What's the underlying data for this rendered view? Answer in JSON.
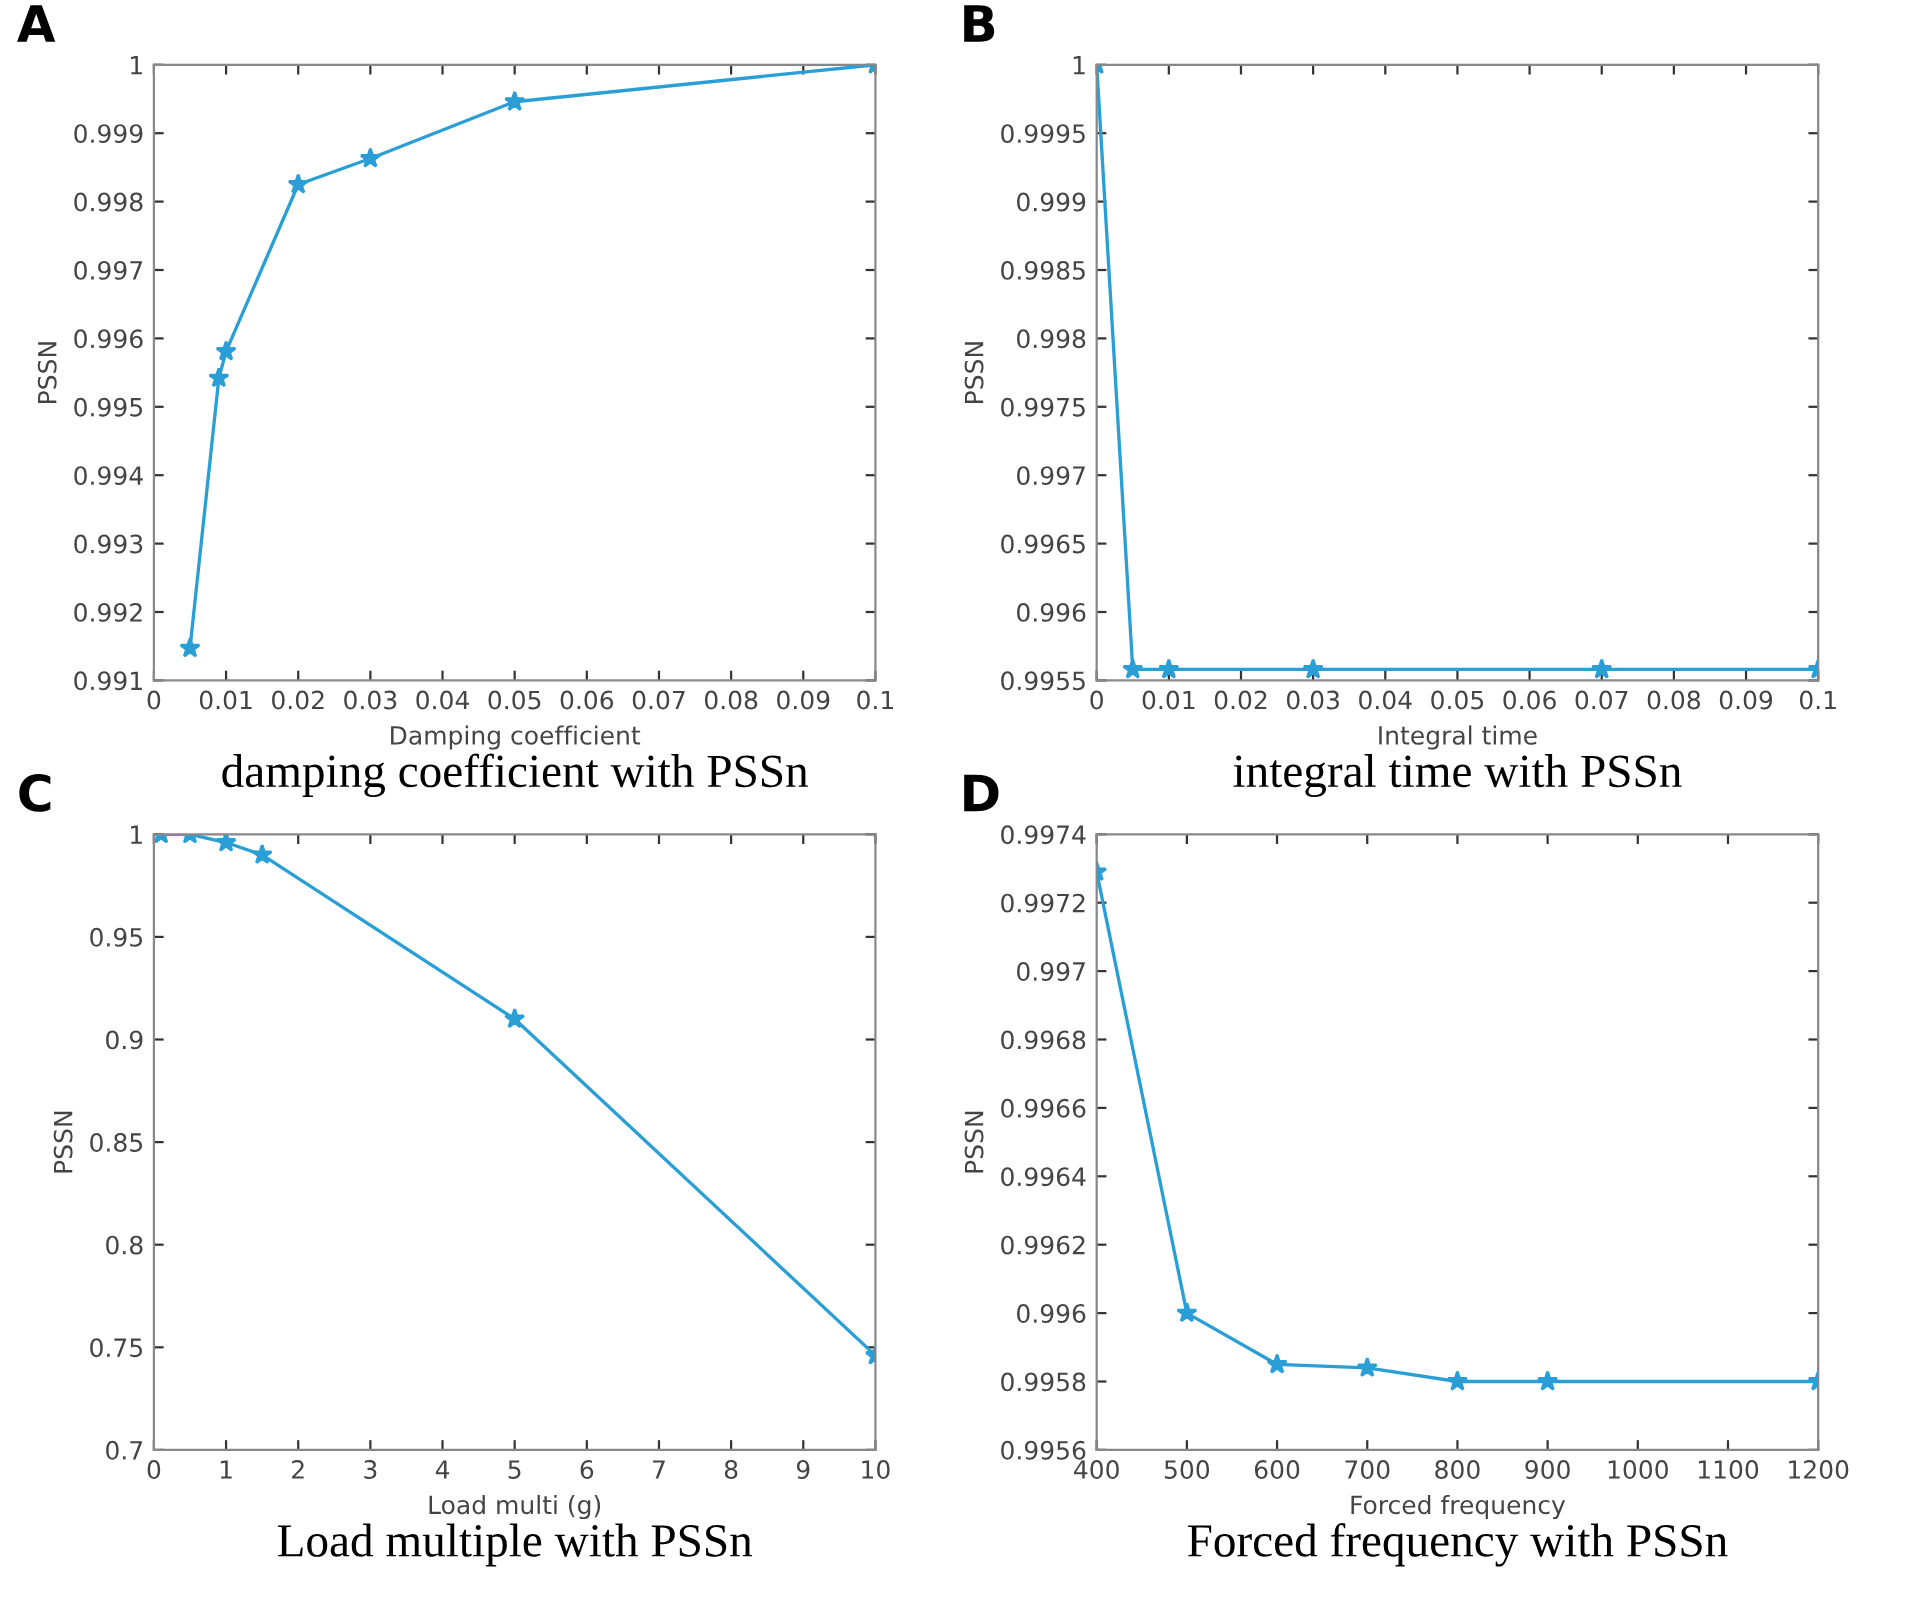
{
  "chart_data": [
    {
      "type": "line",
      "annotations": [
        "A"
      ],
      "title": "damping coefficient with PSSn",
      "xlabel": "Damping coefficient",
      "ylabel": "PSSN",
      "marker": "star",
      "grid": false,
      "x": [
        0.005,
        0.009,
        0.01,
        0.02,
        0.03,
        0.05,
        0.1
      ],
      "series": [
        {
          "color": "#2a9fd6",
          "values": [
            0.99147,
            0.99542,
            0.99581,
            0.99825,
            0.99863,
            0.99946,
            1.0
          ]
        }
      ],
      "xlim": [
        0,
        0.1
      ],
      "xticks": [
        0,
        0.01,
        0.02,
        0.03,
        0.04,
        0.05,
        0.06,
        0.07,
        0.08,
        0.09,
        0.1
      ],
      "ylim": [
        0.991,
        1
      ],
      "yticks": [
        0.991,
        0.992,
        0.993,
        0.994,
        0.995,
        0.996,
        0.997,
        0.998,
        0.999,
        1
      ]
    },
    {
      "type": "line",
      "annotations": [
        "B"
      ],
      "title": "integral time with PSSn",
      "xlabel": "Integral time",
      "ylabel": "PSSN",
      "marker": "star",
      "grid": false,
      "x": [
        0,
        0.005,
        0.01,
        0.03,
        0.07,
        0.1
      ],
      "series": [
        {
          "color": "#2a9fd6",
          "values": [
            1.0,
            0.99558,
            0.99558,
            0.99558,
            0.99558,
            0.99558
          ]
        }
      ],
      "xlim": [
        0,
        0.1
      ],
      "xticks": [
        0,
        0.01,
        0.02,
        0.03,
        0.04,
        0.05,
        0.06,
        0.07,
        0.08,
        0.09,
        0.1
      ],
      "ylim": [
        0.9955,
        1
      ],
      "yticks": [
        0.9955,
        0.996,
        0.9965,
        0.997,
        0.9975,
        0.998,
        0.9985,
        0.999,
        0.9995,
        1
      ]
    },
    {
      "type": "line",
      "annotations": [
        "C"
      ],
      "title": "Load multiple with PSSn",
      "xlabel": "Load multi (g)",
      "ylabel": "PSSN",
      "marker": "star",
      "grid": false,
      "x": [
        0.1,
        0.5,
        1,
        1.5,
        5,
        10
      ],
      "series": [
        {
          "color": "#2a9fd6",
          "values": [
            1.0,
            1.0,
            0.996,
            0.99,
            0.91,
            0.746
          ]
        }
      ],
      "xlim": [
        0,
        10
      ],
      "xticks": [
        0,
        1,
        2,
        3,
        4,
        5,
        6,
        7,
        8,
        9,
        10
      ],
      "ylim": [
        0.7,
        1
      ],
      "yticks": [
        0.7,
        0.75,
        0.8,
        0.85,
        0.9,
        0.95,
        1
      ]
    },
    {
      "type": "line",
      "annotations": [
        "D"
      ],
      "title": "Forced frequency with PSSn",
      "xlabel": "Forced frequency",
      "ylabel": "PSSN",
      "marker": "star",
      "grid": false,
      "x": [
        400,
        500,
        600,
        700,
        800,
        900,
        1200
      ],
      "series": [
        {
          "color": "#2a9fd6",
          "values": [
            0.99729,
            0.996,
            0.99585,
            0.99584,
            0.9958,
            0.9958,
            0.9958
          ]
        }
      ],
      "xlim": [
        400,
        1200
      ],
      "xticks": [
        400,
        500,
        600,
        700,
        800,
        900,
        1000,
        1100,
        1200
      ],
      "ylim": [
        0.9956,
        0.9974
      ],
      "yticks": [
        0.9956,
        0.9958,
        0.996,
        0.9962,
        0.9964,
        0.9966,
        0.9968,
        0.997,
        0.9972,
        0.9974
      ]
    }
  ]
}
